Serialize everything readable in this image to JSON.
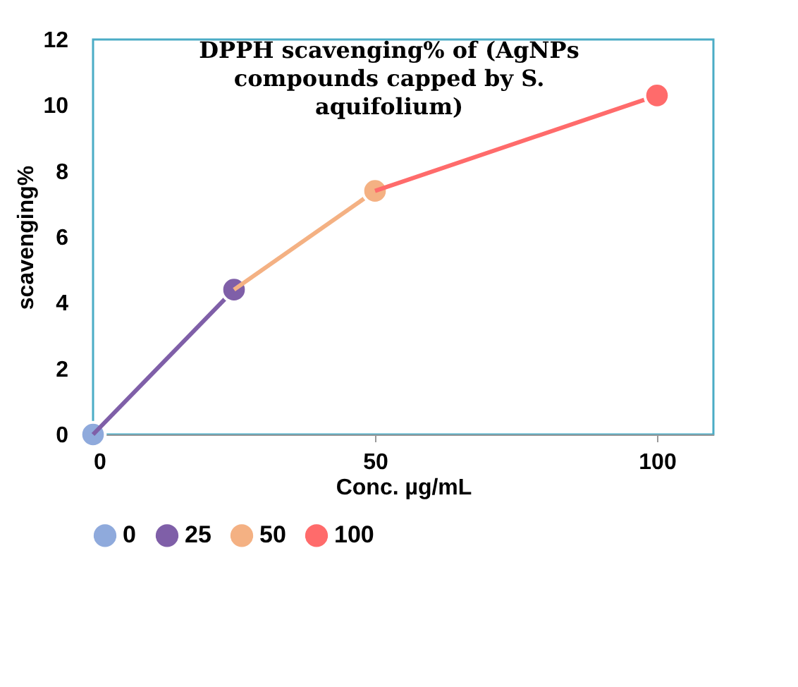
{
  "chart_data": {
    "type": "line",
    "title": "DPPH scavenging% of (AgNPs compounds capped by S. aquifolium)",
    "xlabel": "Conc. µg/mL",
    "ylabel": "scavenging%",
    "xlim": [
      0,
      110
    ],
    "xticks": [
      0,
      50,
      100
    ],
    "ylim": [
      0,
      12
    ],
    "yticks": [
      0,
      2,
      4,
      6,
      8,
      10,
      12
    ],
    "grid": false,
    "legend": "bottom",
    "marker": "circle",
    "line_style": "solid",
    "series": [
      {
        "name": "0",
        "color": "#8faadc",
        "x": [
          0
        ],
        "values": [
          0
        ]
      },
      {
        "name": "25",
        "color": "#7f5fa8",
        "x": [
          0,
          25
        ],
        "values": [
          0,
          4.4
        ]
      },
      {
        "name": "50",
        "color": "#f4b183",
        "x": [
          25,
          50
        ],
        "values": [
          4.4,
          7.4
        ]
      },
      {
        "name": "100",
        "color": "#ff6b6b",
        "x": [
          50,
          100
        ],
        "values": [
          7.4,
          10.3
        ]
      }
    ]
  }
}
